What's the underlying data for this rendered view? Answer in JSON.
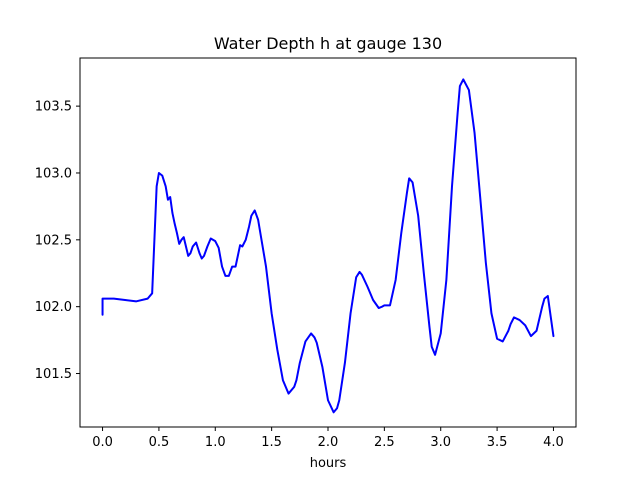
{
  "chart_data": {
    "type": "line",
    "title": "Water Depth h at gauge 130",
    "xlabel": "hours",
    "ylabel": "",
    "xlim": [
      -0.2,
      4.2
    ],
    "ylim": [
      101.1,
      103.86
    ],
    "grid": false,
    "x_ticks": [
      0.0,
      0.5,
      1.0,
      1.5,
      2.0,
      2.5,
      3.0,
      3.5,
      4.0
    ],
    "x_tick_labels": [
      "0.0",
      "0.5",
      "1.0",
      "1.5",
      "2.0",
      "2.5",
      "3.0",
      "3.5",
      "4.0"
    ],
    "y_ticks": [
      101.5,
      102.0,
      102.5,
      103.0,
      103.5
    ],
    "y_tick_labels": [
      "101.5",
      "102.0",
      "102.5",
      "103.0",
      "103.5"
    ],
    "series": [
      {
        "color": "#0000ff",
        "x": [
          0.0,
          0.0,
          0.1,
          0.2,
          0.3,
          0.4,
          0.44,
          0.46,
          0.48,
          0.5,
          0.53,
          0.56,
          0.58,
          0.6,
          0.62,
          0.64,
          0.66,
          0.68,
          0.7,
          0.72,
          0.74,
          0.76,
          0.78,
          0.8,
          0.83,
          0.86,
          0.88,
          0.9,
          0.93,
          0.96,
          1.0,
          1.03,
          1.06,
          1.09,
          1.12,
          1.15,
          1.18,
          1.2,
          1.22,
          1.24,
          1.27,
          1.3,
          1.32,
          1.35,
          1.38,
          1.4,
          1.42,
          1.45,
          1.5,
          1.55,
          1.6,
          1.65,
          1.7,
          1.72,
          1.75,
          1.8,
          1.85,
          1.88,
          1.9,
          1.95,
          2.0,
          2.05,
          2.08,
          2.1,
          2.15,
          2.2,
          2.25,
          2.28,
          2.3,
          2.35,
          2.4,
          2.45,
          2.48,
          2.5,
          2.55,
          2.6,
          2.65,
          2.7,
          2.72,
          2.75,
          2.8,
          2.85,
          2.9,
          2.92,
          2.95,
          3.0,
          3.05,
          3.1,
          3.15,
          3.17,
          3.2,
          3.25,
          3.3,
          3.35,
          3.4,
          3.45,
          3.5,
          3.55,
          3.6,
          3.62,
          3.65,
          3.7,
          3.75,
          3.8,
          3.85,
          3.9,
          3.92,
          3.95,
          4.0
        ],
        "y": [
          101.94,
          102.06,
          102.06,
          102.05,
          102.04,
          102.06,
          102.1,
          102.5,
          102.9,
          103.0,
          102.98,
          102.9,
          102.8,
          102.82,
          102.7,
          102.62,
          102.55,
          102.47,
          102.5,
          102.52,
          102.45,
          102.38,
          102.4,
          102.45,
          102.48,
          102.4,
          102.36,
          102.38,
          102.45,
          102.51,
          102.49,
          102.44,
          102.3,
          102.23,
          102.23,
          102.3,
          102.3,
          102.38,
          102.46,
          102.45,
          102.5,
          102.6,
          102.68,
          102.72,
          102.65,
          102.55,
          102.45,
          102.3,
          101.95,
          101.68,
          101.45,
          101.35,
          101.4,
          101.45,
          101.58,
          101.74,
          101.8,
          101.77,
          101.73,
          101.55,
          101.3,
          101.21,
          101.24,
          101.3,
          101.58,
          101.95,
          102.22,
          102.26,
          102.24,
          102.15,
          102.05,
          101.99,
          102.0,
          102.01,
          102.01,
          102.2,
          102.55,
          102.85,
          102.96,
          102.93,
          102.68,
          102.25,
          101.85,
          101.7,
          101.64,
          101.8,
          102.2,
          102.9,
          103.45,
          103.65,
          103.7,
          103.62,
          103.3,
          102.82,
          102.33,
          101.95,
          101.76,
          101.74,
          101.82,
          101.87,
          101.92,
          101.9,
          101.86,
          101.78,
          101.82,
          102.0,
          102.06,
          102.08,
          101.78
        ]
      }
    ]
  }
}
